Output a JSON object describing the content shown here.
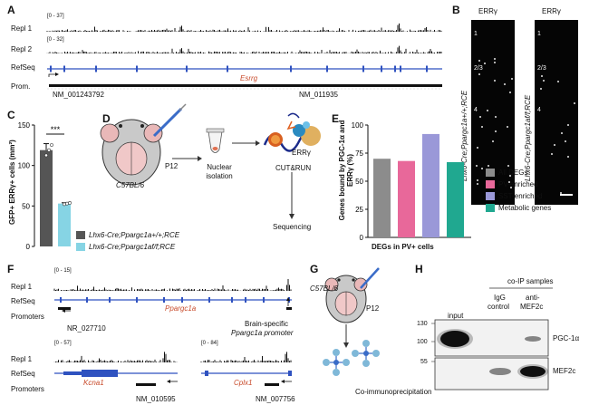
{
  "panels": {
    "A": {
      "label": "A",
      "tracks": [
        {
          "name": "Repl 1",
          "range": "[0 - 37]"
        },
        {
          "name": "Repl 2",
          "range": "[0 - 32]"
        }
      ],
      "refseq_label": "RefSeq",
      "prom_label": "Prom.",
      "gene": "Esrrg",
      "accession_left": "NM_001243792",
      "accession_right": "NM_011935"
    },
    "B": {
      "label": "B",
      "header_left": "ERRγ",
      "header_right": "ERRγ",
      "genotype_left": "Lhx6-Cre;Ppargc1a+/+;RCE",
      "genotype_right": "Lhx6-Cre;Ppargc1af/f;RCE",
      "layers": [
        "1",
        "2/3",
        "4"
      ]
    },
    "C": {
      "label": "C",
      "ylabel": "GFP+ ERRγ+ cells (mm²)",
      "significance": "***",
      "legend": [
        {
          "label": "Lhx6-Cre;Ppargc1a+/+;RCE",
          "color": "#555555"
        },
        {
          "label": "Lhx6-Cre;Ppargc1af/f;RCE",
          "color": "#86d4e4"
        }
      ]
    },
    "D": {
      "label": "D",
      "strain": "C57BL/6",
      "age": "P12",
      "step1": "Nuclear isolation",
      "target": "ERRγ",
      "step2": "CUT&RUN",
      "step3": "Sequencing"
    },
    "E": {
      "label": "E",
      "legend": [
        {
          "label": "All DEGs",
          "color": "#8c8c8c"
        },
        {
          "label": "PV-enriched",
          "color": "#e8689a"
        },
        {
          "label": "SST-enriched",
          "color": "#9a98d8"
        },
        {
          "label": "Metabolic genes",
          "color": "#20a890"
        }
      ]
    },
    "F": {
      "label": "F",
      "top": {
        "repl_label": "Repl 1",
        "range": "[0 - 15]",
        "refseq_label": "RefSeq",
        "promoters_label": "Promoters",
        "gene": "Ppargc1a",
        "accession": "NR_027710",
        "note_line1": "Brain-specific",
        "note_line2": "Ppargc1a promoter"
      },
      "bottom": {
        "repl_label": "Repl 1",
        "range_left": "[0 - 57]",
        "range_right": "[0 - 84]",
        "refseq_label": "RefSeq",
        "promoters_label": "Promoters",
        "gene_left": "Kcna1",
        "gene_right": "Cplx1",
        "accession_left": "NM_010595",
        "accession_right": "NM_007756"
      }
    },
    "G": {
      "label": "G",
      "strain": "C57BL/6",
      "age": "P12",
      "caption": "Co-immunoprecipitation"
    },
    "H": {
      "label": "H",
      "header": "co-IP samples",
      "lane_input": "input",
      "lane_igg_1": "IgG",
      "lane_igg_2": "control",
      "lane_anti_1": "anti-",
      "lane_anti_2": "MEF2c",
      "markers": [
        "130",
        "100",
        "55"
      ],
      "band_top": "PGC-1α",
      "band_bottom": "MEF2c"
    }
  },
  "chart_data": [
    {
      "type": "bar",
      "panel": "C",
      "categories": [
        "Lhx6-Cre;Ppargc1a+/+;RCE",
        "Lhx6-Cre;Ppargc1af/f;RCE"
      ],
      "values": [
        119,
        53
      ],
      "errors": [
        8,
        1
      ],
      "colors": [
        "#555555",
        "#86d4e4"
      ],
      "ylabel": "GFP+ ERRγ+ cells (mm²)",
      "yticks": [
        0,
        50,
        100,
        150
      ],
      "ylim": [
        0,
        150
      ],
      "significance": "***"
    },
    {
      "type": "bar",
      "panel": "E",
      "categories": [
        "All DEGs",
        "PV-enriched",
        "SST-enriched",
        "Metabolic genes"
      ],
      "values": [
        70,
        68,
        92,
        67
      ],
      "colors": [
        "#8c8c8c",
        "#e8689a",
        "#9a98d8",
        "#20a890"
      ],
      "xlabel": "DEGs in PV+ cells",
      "ylabel": "Genes bound by PGC-1α and ERRγ (%)",
      "yticks": [
        0,
        25,
        50,
        75,
        100
      ],
      "ylim": [
        0,
        100
      ]
    }
  ]
}
